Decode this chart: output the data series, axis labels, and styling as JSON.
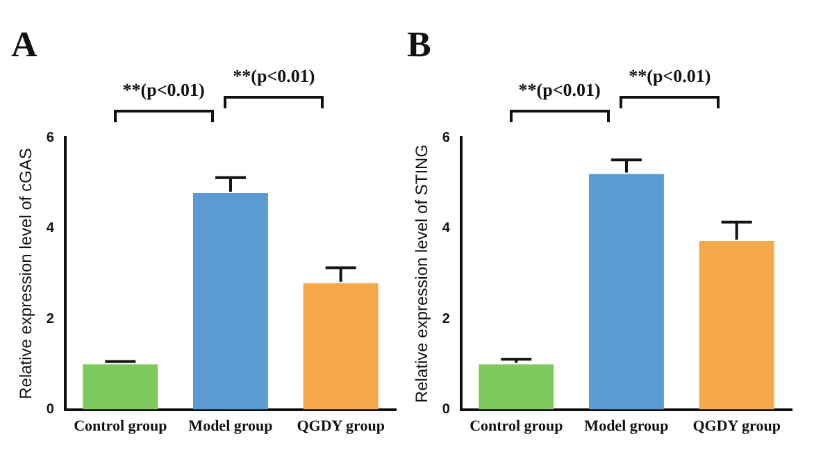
{
  "chart_data": [
    {
      "type": "bar",
      "title": "A",
      "ylabel": "Relative expression level of cGAS",
      "categories": [
        "Control group",
        "Model group",
        "QGDY group"
      ],
      "values": [
        1.0,
        4.78,
        2.79
      ],
      "colors": [
        "#7dc95e",
        "#5b9bd5",
        "#f4a84a"
      ],
      "errors": [
        [
          1.0,
          1.06
        ],
        [
          4.78,
          5.12
        ],
        [
          2.79,
          3.13
        ]
      ],
      "ylim": [
        0,
        6
      ],
      "yticks": [
        0,
        2,
        4,
        6
      ],
      "annotations": [
        "**(p<0.01)",
        "**(p<0.01)"
      ]
    },
    {
      "type": "bar",
      "title": "B",
      "ylabel": "Relative expression level of STING",
      "categories": [
        "Control group",
        "Model group",
        "QGDY group"
      ],
      "values": [
        1.0,
        5.2,
        3.72
      ],
      "colors": [
        "#7dc95e",
        "#5b9bd5",
        "#f4a84a"
      ],
      "errors": [
        [
          1.0,
          1.11
        ],
        [
          5.2,
          5.51
        ],
        [
          3.72,
          4.14
        ]
      ],
      "ylim": [
        0,
        6
      ],
      "yticks": [
        0,
        2,
        4,
        6
      ],
      "annotations": [
        "**(p<0.01)",
        "**(p<0.01)"
      ]
    }
  ]
}
